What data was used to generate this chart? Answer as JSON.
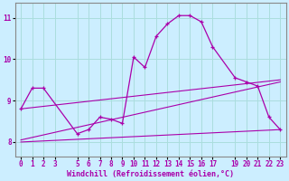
{
  "xlabel": "Windchill (Refroidissement éolien,°C)",
  "background_color": "#cceeff",
  "grid_color": "#aadddd",
  "line_color": "#aa00aa",
  "spine_color": "#888888",
  "xlim": [
    -0.5,
    23.5
  ],
  "ylim": [
    7.65,
    11.35
  ],
  "xticks": [
    0,
    1,
    2,
    3,
    5,
    6,
    7,
    8,
    9,
    10,
    11,
    12,
    13,
    14,
    15,
    16,
    17,
    19,
    20,
    21,
    22,
    23
  ],
  "yticks": [
    8,
    9,
    10,
    11
  ],
  "series1_x": [
    0,
    1,
    2,
    5,
    6,
    7,
    8,
    9,
    10,
    11,
    12,
    13,
    14,
    15,
    16,
    17,
    19,
    20,
    21,
    22,
    23
  ],
  "series1_y": [
    8.8,
    9.3,
    9.3,
    8.2,
    8.3,
    8.6,
    8.55,
    8.45,
    10.05,
    9.8,
    10.55,
    10.85,
    11.05,
    11.05,
    10.9,
    10.3,
    9.55,
    9.45,
    9.35,
    8.6,
    8.3
  ],
  "series2_x": [
    0,
    23
  ],
  "series2_y": [
    8.05,
    9.45
  ],
  "series3_x": [
    0,
    23
  ],
  "series3_y": [
    8.0,
    8.3
  ],
  "series4_x": [
    0,
    23
  ],
  "series4_y": [
    8.8,
    9.5
  ]
}
